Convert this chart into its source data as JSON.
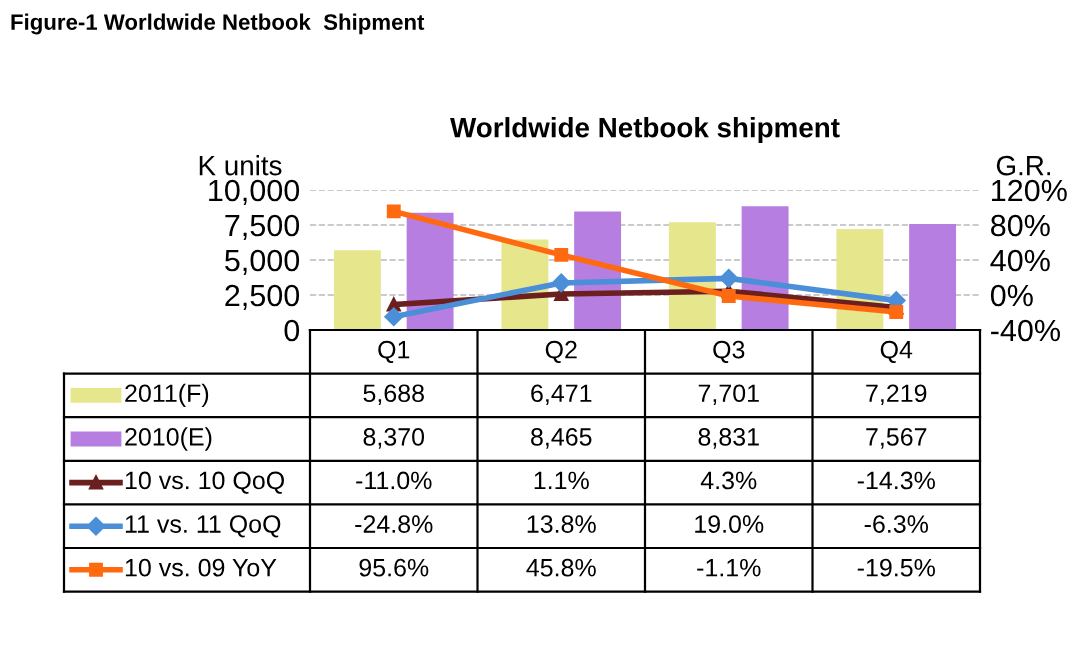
{
  "chart_data": {
    "type": "bar",
    "title": "Figure-1 Worldwide Netbook  Shipment",
    "subtitle": "Worldwide Netbook shipment",
    "ylabel": "K units",
    "y2label": "G.R.",
    "categories": [
      "Q1",
      "Q2",
      "Q3",
      "Q4"
    ],
    "ylim": [
      0,
      10000
    ],
    "yticks": [
      {
        "value": 0,
        "label": "0"
      },
      {
        "value": 2500,
        "label": "2,500"
      },
      {
        "value": 5000,
        "label": "5,000"
      },
      {
        "value": 7500,
        "label": "7,500"
      },
      {
        "value": 10000,
        "label": "10,000"
      }
    ],
    "y2lim": [
      -40,
      120
    ],
    "y2ticks": [
      {
        "value": -40,
        "label": "-40%"
      },
      {
        "value": 0,
        "label": "0%"
      },
      {
        "value": 40,
        "label": "40%"
      },
      {
        "value": 80,
        "label": "80%"
      },
      {
        "value": 120,
        "label": "120%"
      }
    ],
    "grid": "y",
    "legend": "bottom",
    "series": [
      {
        "name": "2011(F)",
        "color": "#e6e68c",
        "values": [
          5688,
          6471,
          7701,
          7219
        ],
        "value_labels": [
          "5,688",
          "6,471",
          "7,701",
          "7,219"
        ]
      },
      {
        "name": "2010(E)",
        "color": "#b57ee0",
        "values": [
          8370,
          8465,
          8831,
          7567
        ],
        "value_labels": [
          "8,370",
          "8,465",
          "8,831",
          "7,567"
        ]
      },
      {
        "name": "10 vs. 10 QoQ",
        "type": "line",
        "axis": "y2",
        "color": "#6b1f1f",
        "marker": "triangle",
        "values": [
          -11.0,
          1.1,
          4.3,
          -14.3
        ],
        "value_labels": [
          "-11.0%",
          "1.1%",
          "4.3%",
          "-14.3%"
        ]
      },
      {
        "name": "11 vs. 11 QoQ",
        "type": "line",
        "axis": "y2",
        "color": "#4a8fd8",
        "marker": "diamond",
        "values": [
          -24.8,
          13.8,
          19.0,
          -6.3
        ],
        "value_labels": [
          "-24.8%",
          "13.8%",
          "19.0%",
          "-6.3%"
        ]
      },
      {
        "name": "10 vs. 09 YoY",
        "type": "line",
        "axis": "y2",
        "color": "#ff6a10",
        "marker": "square",
        "values": [
          95.6,
          45.8,
          -1.1,
          -19.5
        ],
        "value_labels": [
          "95.6%",
          "45.8%",
          "-1.1%",
          "-19.5%"
        ]
      }
    ]
  }
}
